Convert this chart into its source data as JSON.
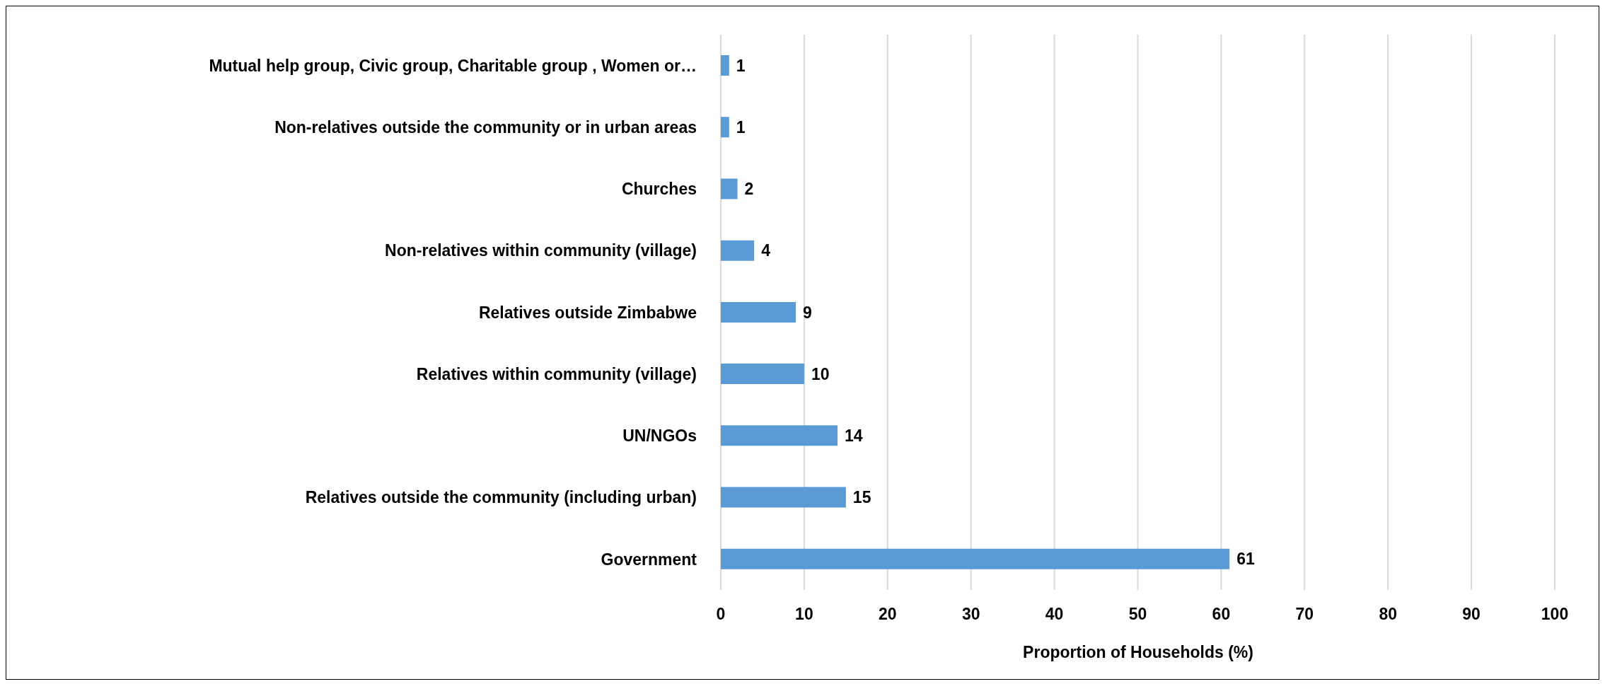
{
  "chart_data": {
    "type": "bar",
    "orientation": "horizontal",
    "xlabel": "Proportion of Households (%)",
    "categories": [
      "Mutual help group, Civic  group, Charitable group , Women or…",
      "Non-relatives outside the community or in urban areas",
      "Churches",
      "Non-relatives within community (village)",
      "Relatives outside Zimbabwe",
      "Relatives within community (village)",
      "UN/NGOs",
      "Relatives outside the community (including urban)",
      "Government"
    ],
    "values": [
      1,
      1,
      2,
      4,
      9,
      10,
      14,
      15,
      61
    ],
    "color": "#5b9bd5",
    "xlim": [
      0,
      100
    ],
    "xticks": [
      0,
      10,
      20,
      30,
      40,
      50,
      60,
      70,
      80,
      90,
      100
    ],
    "grid": "x",
    "data_labels": true,
    "legend": false
  }
}
